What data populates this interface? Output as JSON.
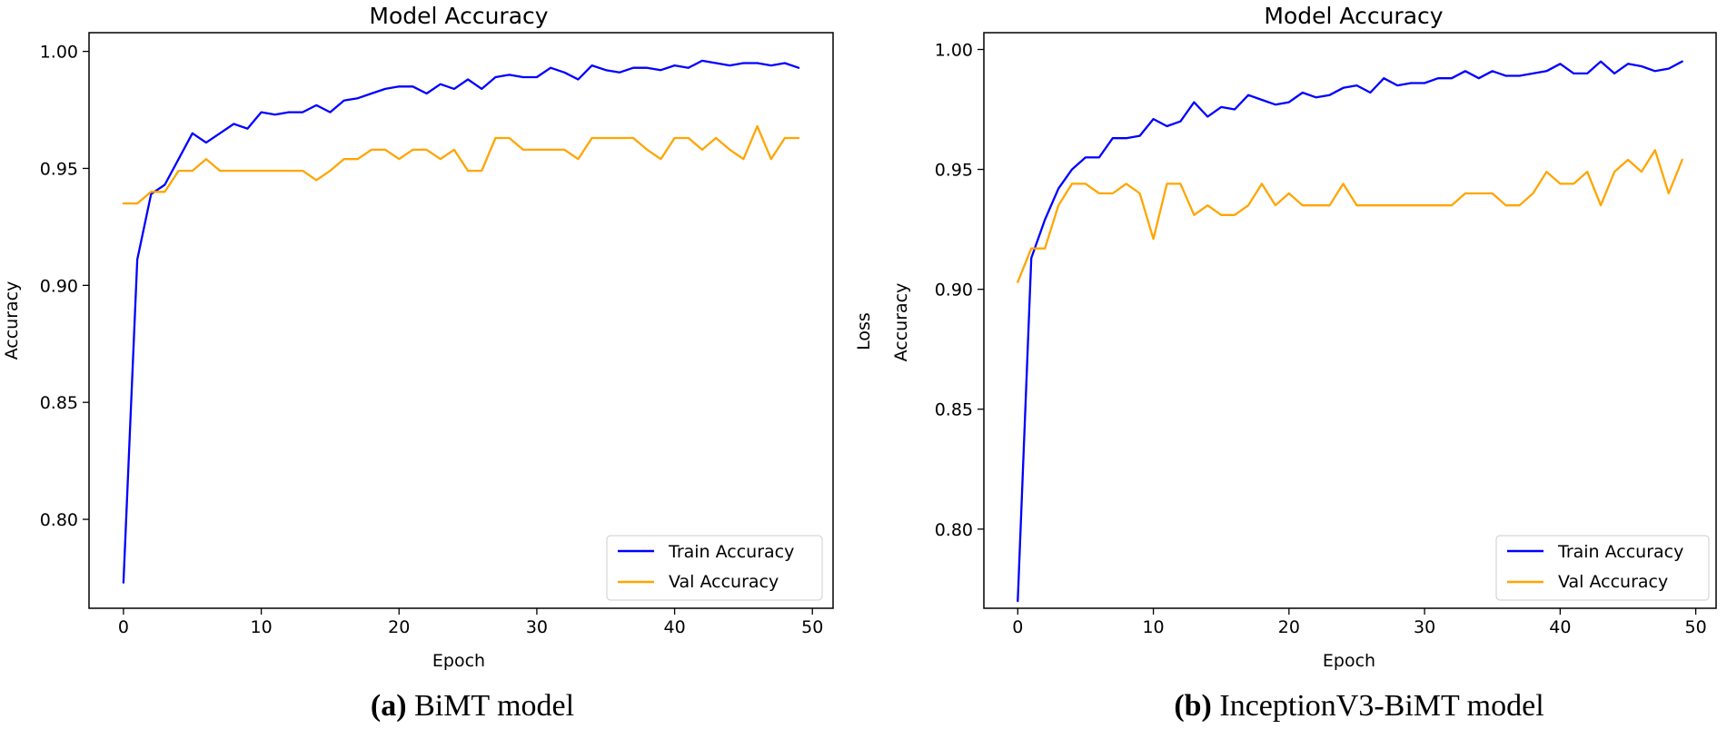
{
  "chart_data": [
    {
      "type": "line",
      "title": "Model Accuracy",
      "xlabel": "Epoch",
      "ylabel": "Accuracy",
      "extra_ylabel": "",
      "xlim": [
        -2.5,
        51.5
      ],
      "ylim": [
        0.762,
        1.008
      ],
      "xticks": [
        0,
        10,
        20,
        30,
        40,
        50
      ],
      "yticks": [
        0.8,
        0.85,
        0.9,
        0.95,
        1.0
      ],
      "ytick_labels": [
        "0.80",
        "0.85",
        "0.90",
        "0.95",
        "1.00"
      ],
      "xtick_labels": [
        "0",
        "10",
        "20",
        "30",
        "40",
        "50"
      ],
      "legend_position": "lower-right",
      "x": [
        0,
        1,
        2,
        3,
        4,
        5,
        6,
        7,
        8,
        9,
        10,
        11,
        12,
        13,
        14,
        15,
        16,
        17,
        18,
        19,
        20,
        21,
        22,
        23,
        24,
        25,
        26,
        27,
        28,
        29,
        30,
        31,
        32,
        33,
        34,
        35,
        36,
        37,
        38,
        39,
        40,
        41,
        42,
        43,
        44,
        45,
        46,
        47,
        48,
        49
      ],
      "series": [
        {
          "name": "Train Accuracy",
          "color": "#0000ff",
          "values": [
            0.773,
            0.911,
            0.939,
            0.943,
            0.954,
            0.965,
            0.961,
            0.965,
            0.969,
            0.967,
            0.974,
            0.973,
            0.974,
            0.974,
            0.977,
            0.974,
            0.979,
            0.98,
            0.982,
            0.984,
            0.985,
            0.985,
            0.982,
            0.986,
            0.984,
            0.988,
            0.984,
            0.989,
            0.99,
            0.989,
            0.989,
            0.993,
            0.991,
            0.988,
            0.994,
            0.992,
            0.991,
            0.993,
            0.993,
            0.992,
            0.994,
            0.993,
            0.996,
            0.995,
            0.994,
            0.995,
            0.995,
            0.994,
            0.995,
            0.993
          ]
        },
        {
          "name": "Val Accuracy",
          "color": "#ffa500",
          "values": [
            0.935,
            0.935,
            0.94,
            0.94,
            0.949,
            0.949,
            0.954,
            0.949,
            0.949,
            0.949,
            0.949,
            0.949,
            0.949,
            0.949,
            0.945,
            0.949,
            0.954,
            0.954,
            0.958,
            0.958,
            0.954,
            0.958,
            0.958,
            0.954,
            0.958,
            0.949,
            0.949,
            0.963,
            0.963,
            0.958,
            0.958,
            0.958,
            0.958,
            0.954,
            0.963,
            0.963,
            0.963,
            0.963,
            0.958,
            0.954,
            0.963,
            0.963,
            0.958,
            0.963,
            0.958,
            0.954,
            0.968,
            0.954,
            0.963,
            0.963
          ]
        }
      ]
    },
    {
      "type": "line",
      "title": "Model Accuracy",
      "xlabel": "Epoch",
      "ylabel": "Accuracy",
      "extra_ylabel": "Loss",
      "xlim": [
        -2.5,
        51.5
      ],
      "ylim": [
        0.767,
        1.007
      ],
      "xticks": [
        0,
        10,
        20,
        30,
        40,
        50
      ],
      "yticks": [
        0.8,
        0.85,
        0.9,
        0.95,
        1.0
      ],
      "ytick_labels": [
        "0.80",
        "0.85",
        "0.90",
        "0.95",
        "1.00"
      ],
      "xtick_labels": [
        "0",
        "10",
        "20",
        "30",
        "40",
        "50"
      ],
      "legend_position": "lower-right",
      "x": [
        0,
        1,
        2,
        3,
        4,
        5,
        6,
        7,
        8,
        9,
        10,
        11,
        12,
        13,
        14,
        15,
        16,
        17,
        18,
        19,
        20,
        21,
        22,
        23,
        24,
        25,
        26,
        27,
        28,
        29,
        30,
        31,
        32,
        33,
        34,
        35,
        36,
        37,
        38,
        39,
        40,
        41,
        42,
        43,
        44,
        45,
        46,
        47,
        48,
        49
      ],
      "series": [
        {
          "name": "Train Accuracy",
          "color": "#0000ff",
          "values": [
            0.77,
            0.913,
            0.929,
            0.942,
            0.95,
            0.955,
            0.955,
            0.963,
            0.963,
            0.964,
            0.971,
            0.968,
            0.97,
            0.978,
            0.972,
            0.976,
            0.975,
            0.981,
            0.979,
            0.977,
            0.978,
            0.982,
            0.98,
            0.981,
            0.984,
            0.985,
            0.982,
            0.988,
            0.985,
            0.986,
            0.986,
            0.988,
            0.988,
            0.991,
            0.988,
            0.991,
            0.989,
            0.989,
            0.99,
            0.991,
            0.994,
            0.99,
            0.99,
            0.995,
            0.99,
            0.994,
            0.993,
            0.991,
            0.992,
            0.995
          ]
        },
        {
          "name": "Val Accuracy",
          "color": "#ffa500",
          "values": [
            0.903,
            0.917,
            0.917,
            0.935,
            0.944,
            0.944,
            0.94,
            0.94,
            0.944,
            0.94,
            0.921,
            0.944,
            0.944,
            0.931,
            0.935,
            0.931,
            0.931,
            0.935,
            0.944,
            0.935,
            0.94,
            0.935,
            0.935,
            0.935,
            0.944,
            0.935,
            0.935,
            0.935,
            0.935,
            0.935,
            0.935,
            0.935,
            0.935,
            0.94,
            0.94,
            0.94,
            0.935,
            0.935,
            0.94,
            0.949,
            0.944,
            0.944,
            0.949,
            0.935,
            0.949,
            0.954,
            0.949,
            0.958,
            0.94,
            0.954
          ]
        }
      ]
    }
  ],
  "captions": [
    {
      "letter": "(a)",
      "text": " BiMT model"
    },
    {
      "letter": "(b)",
      "text": " InceptionV3-BiMT model"
    }
  ]
}
